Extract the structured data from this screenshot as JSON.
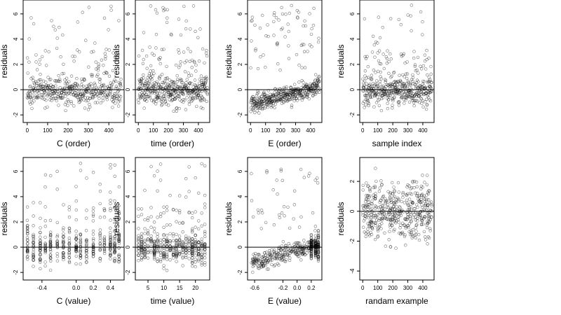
{
  "chart_data": [
    {
      "type": "scatter",
      "xlabel": "C (order)",
      "ylabel": "residuals",
      "xlim": [
        -20,
        475
      ],
      "ylim": [
        -2.6,
        7.1
      ],
      "xticks": [
        0,
        100,
        200,
        300,
        400
      ],
      "xtick_labels": [
        "0",
        "100",
        "200",
        "300",
        "400"
      ],
      "yticks": [
        -2,
        0,
        2,
        4,
        6
      ],
      "ytick_labels": [
        "-2",
        "0",
        "2",
        "4",
        "6"
      ],
      "hline": 0,
      "grid": false,
      "series": [
        {
          "gen": "order",
          "seed": 11,
          "n": 460,
          "xmin": 0,
          "xmax": 460
        }
      ]
    },
    {
      "type": "scatter",
      "xlabel": "time (order)",
      "ylabel": "residuals",
      "xlim": [
        -20,
        475
      ],
      "ylim": [
        -2.6,
        7.1
      ],
      "xticks": [
        0,
        100,
        200,
        300,
        400
      ],
      "xtick_labels": [
        "0",
        "100",
        "200",
        "300",
        "400"
      ],
      "yticks": [
        -2,
        0,
        2,
        4,
        6
      ],
      "ytick_labels": [
        "-2",
        "0",
        "2",
        "4",
        "6"
      ],
      "hline": 0,
      "grid": false,
      "series": [
        {
          "gen": "order",
          "seed": 23,
          "n": 460,
          "xmin": 0,
          "xmax": 460
        }
      ]
    },
    {
      "type": "scatter",
      "xlabel": "E (order)",
      "ylabel": "residuals",
      "xlim": [
        -20,
        475
      ],
      "ylim": [
        -2.6,
        7.1
      ],
      "xticks": [
        0,
        100,
        200,
        300,
        400
      ],
      "xtick_labels": [
        "0",
        "100",
        "200",
        "300",
        "400"
      ],
      "yticks": [
        -2,
        0,
        2,
        4,
        6
      ],
      "ytick_labels": [
        "-2",
        "0",
        "2",
        "4",
        "6"
      ],
      "hline": 0,
      "grid": false,
      "series": [
        {
          "gen": "trend",
          "seed": 37,
          "n": 460,
          "xmin": 0,
          "xmax": 460
        }
      ]
    },
    {
      "type": "scatter",
      "xlabel": "sample index",
      "ylabel": "residuals",
      "xlim": [
        -20,
        475
      ],
      "ylim": [
        -2.6,
        7.1
      ],
      "xticks": [
        0,
        100,
        200,
        300,
        400
      ],
      "xtick_labels": [
        "0",
        "100",
        "200",
        "300",
        "400"
      ],
      "yticks": [
        -2,
        0,
        2,
        4,
        6
      ],
      "ytick_labels": [
        "-2",
        "0",
        "2",
        "4",
        "6"
      ],
      "hline": 0,
      "grid": false,
      "series": [
        {
          "gen": "order",
          "seed": 53,
          "n": 460,
          "xmin": 0,
          "xmax": 460
        }
      ]
    },
    {
      "type": "scatter",
      "xlabel": "C (value)",
      "ylabel": "residuals",
      "xlim": [
        -0.62,
        0.56
      ],
      "ylim": [
        -2.6,
        7.1
      ],
      "xticks": [
        -0.4,
        0.0,
        0.2,
        0.4
      ],
      "xtick_labels": [
        "-0.4",
        "0.0",
        "0.2",
        "0.4"
      ],
      "yticks": [
        -2,
        0,
        2,
        4,
        6
      ],
      "ytick_labels": [
        "-2",
        "0",
        "2",
        "4",
        "6"
      ],
      "hline": 0,
      "grid": false,
      "series": [
        {
          "gen": "columns",
          "seed": 67,
          "n": 460,
          "levels": [
            -0.57,
            -0.5,
            -0.42,
            -0.36,
            -0.3,
            -0.22,
            -0.15,
            -0.08,
            0.0,
            0.05,
            0.12,
            0.2,
            0.28,
            0.33,
            0.4,
            0.45,
            0.5
          ]
        }
      ]
    },
    {
      "type": "scatter",
      "xlabel": "time (value)",
      "ylabel": "residuals",
      "xlim": [
        1,
        24.5
      ],
      "ylim": [
        -2.6,
        7.1
      ],
      "xticks": [
        5,
        10,
        15,
        20
      ],
      "xtick_labels": [
        "5",
        "10",
        "15",
        "20"
      ],
      "yticks": [
        -2,
        0,
        2,
        4,
        6
      ],
      "ytick_labels": [
        "-2",
        "0",
        "2",
        "4",
        "6"
      ],
      "hline": 0,
      "grid": false,
      "series": [
        {
          "gen": "columns",
          "seed": 79,
          "n": 460,
          "levels": [
            2,
            3,
            4,
            5,
            6,
            7,
            8,
            9,
            10,
            11,
            12,
            13,
            14,
            15,
            16,
            17,
            18,
            19,
            20,
            21,
            22,
            23
          ]
        }
      ]
    },
    {
      "type": "scatter",
      "xlabel": "E (value)",
      "ylabel": "residuals",
      "xlim": [
        -0.7,
        0.35
      ],
      "ylim": [
        -2.6,
        7.1
      ],
      "xticks": [
        -0.6,
        -0.2,
        0.0,
        0.2
      ],
      "xtick_labels": [
        "-0.6",
        "-0.2",
        "0.0",
        "0.2"
      ],
      "yticks": [
        -2,
        0,
        2,
        4,
        6
      ],
      "ytick_labels": [
        "-2",
        "0",
        "2",
        "4",
        "6"
      ],
      "hline": 0,
      "grid": false,
      "series": [
        {
          "gen": "evalue",
          "seed": 97,
          "n": 460,
          "xmin": -0.65,
          "xmax": 0.3,
          "levels": [
            0.2,
            0.26,
            0.3
          ]
        }
      ]
    },
    {
      "type": "scatter",
      "xlabel": "randam example",
      "ylabel": "residuals",
      "xlim": [
        -20,
        475
      ],
      "ylim": [
        -4.6,
        3.6
      ],
      "xticks": [
        0,
        100,
        200,
        300,
        400
      ],
      "xtick_labels": [
        "0",
        "100",
        "200",
        "300",
        "400"
      ],
      "yticks": [
        -4,
        -2,
        0,
        2
      ],
      "ytick_labels": [
        "-4",
        "-2",
        "0",
        "2"
      ],
      "hline": 0,
      "grid": false,
      "series": [
        {
          "gen": "normal",
          "seed": 113,
          "n": 460,
          "xmin": 0,
          "xmax": 460
        }
      ]
    }
  ]
}
